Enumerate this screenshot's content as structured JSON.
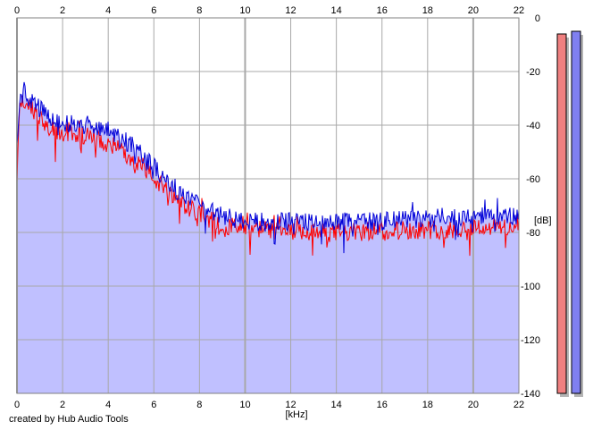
{
  "footer": {
    "credit": "created by Hub Audio Tools"
  },
  "colors": {
    "fill": "#c0c0ff",
    "grid": "#a8a8a8",
    "channel_left": "#ff0000",
    "channel_right": "#0000d8",
    "meter_left": "#f08080",
    "meter_right": "#8080f0",
    "meter_border": "#000000",
    "meter_shadow": "#b4b4b4"
  },
  "chart_data": {
    "type": "line",
    "title": "",
    "xlabel": "[kHz]",
    "ylabel": "[dB]",
    "xlim": [
      0,
      22
    ],
    "ylim": [
      -140,
      0
    ],
    "x_ticks": [
      "0",
      "2",
      "4",
      "6",
      "8",
      "10",
      "12",
      "14",
      "16",
      "18",
      "20",
      "22"
    ],
    "y_ticks": [
      "0",
      "-20",
      "-40",
      "-60",
      "-80",
      "-100",
      "-120",
      "-140"
    ],
    "grid": true,
    "series": [
      {
        "key": "left",
        "color": "#ff0000",
        "x": [
          0,
          0.1,
          0.3,
          0.5,
          1,
          1.5,
          2,
          2.5,
          3,
          3.5,
          4,
          4.5,
          5,
          5.5,
          6,
          6.5,
          7,
          7.5,
          8,
          8.5,
          9,
          10,
          11,
          12,
          13,
          14,
          15,
          16,
          17,
          18,
          19,
          20,
          21,
          22
        ],
        "values": [
          -60,
          -36,
          -30,
          -33,
          -38,
          -42,
          -43,
          -43,
          -44,
          -45,
          -47,
          -49,
          -52,
          -55,
          -60,
          -64,
          -68,
          -71,
          -73,
          -75,
          -77,
          -79,
          -79,
          -80,
          -80,
          -80,
          -80,
          -79,
          -79,
          -79,
          -79,
          -78,
          -78,
          -78
        ]
      },
      {
        "key": "right",
        "color": "#0000d8",
        "x": [
          0,
          0.1,
          0.3,
          0.5,
          1,
          1.5,
          2,
          2.5,
          3,
          3.5,
          4,
          4.5,
          5,
          5.5,
          6,
          6.5,
          7,
          7.5,
          8,
          8.5,
          9,
          10,
          11,
          12,
          13,
          14,
          15,
          16,
          17,
          18,
          19,
          20,
          21,
          22
        ],
        "values": [
          -50,
          -32,
          -27,
          -30,
          -34,
          -38,
          -39,
          -40,
          -40,
          -41,
          -43,
          -45,
          -47,
          -51,
          -55,
          -61,
          -65,
          -68,
          -70,
          -72,
          -74,
          -76,
          -76,
          -76,
          -76,
          -76,
          -76,
          -76,
          -75,
          -75,
          -74,
          -74,
          -74,
          -74
        ]
      }
    ],
    "fill_area": true,
    "level_meters": {
      "left_db": -6,
      "right_db": -5
    }
  }
}
